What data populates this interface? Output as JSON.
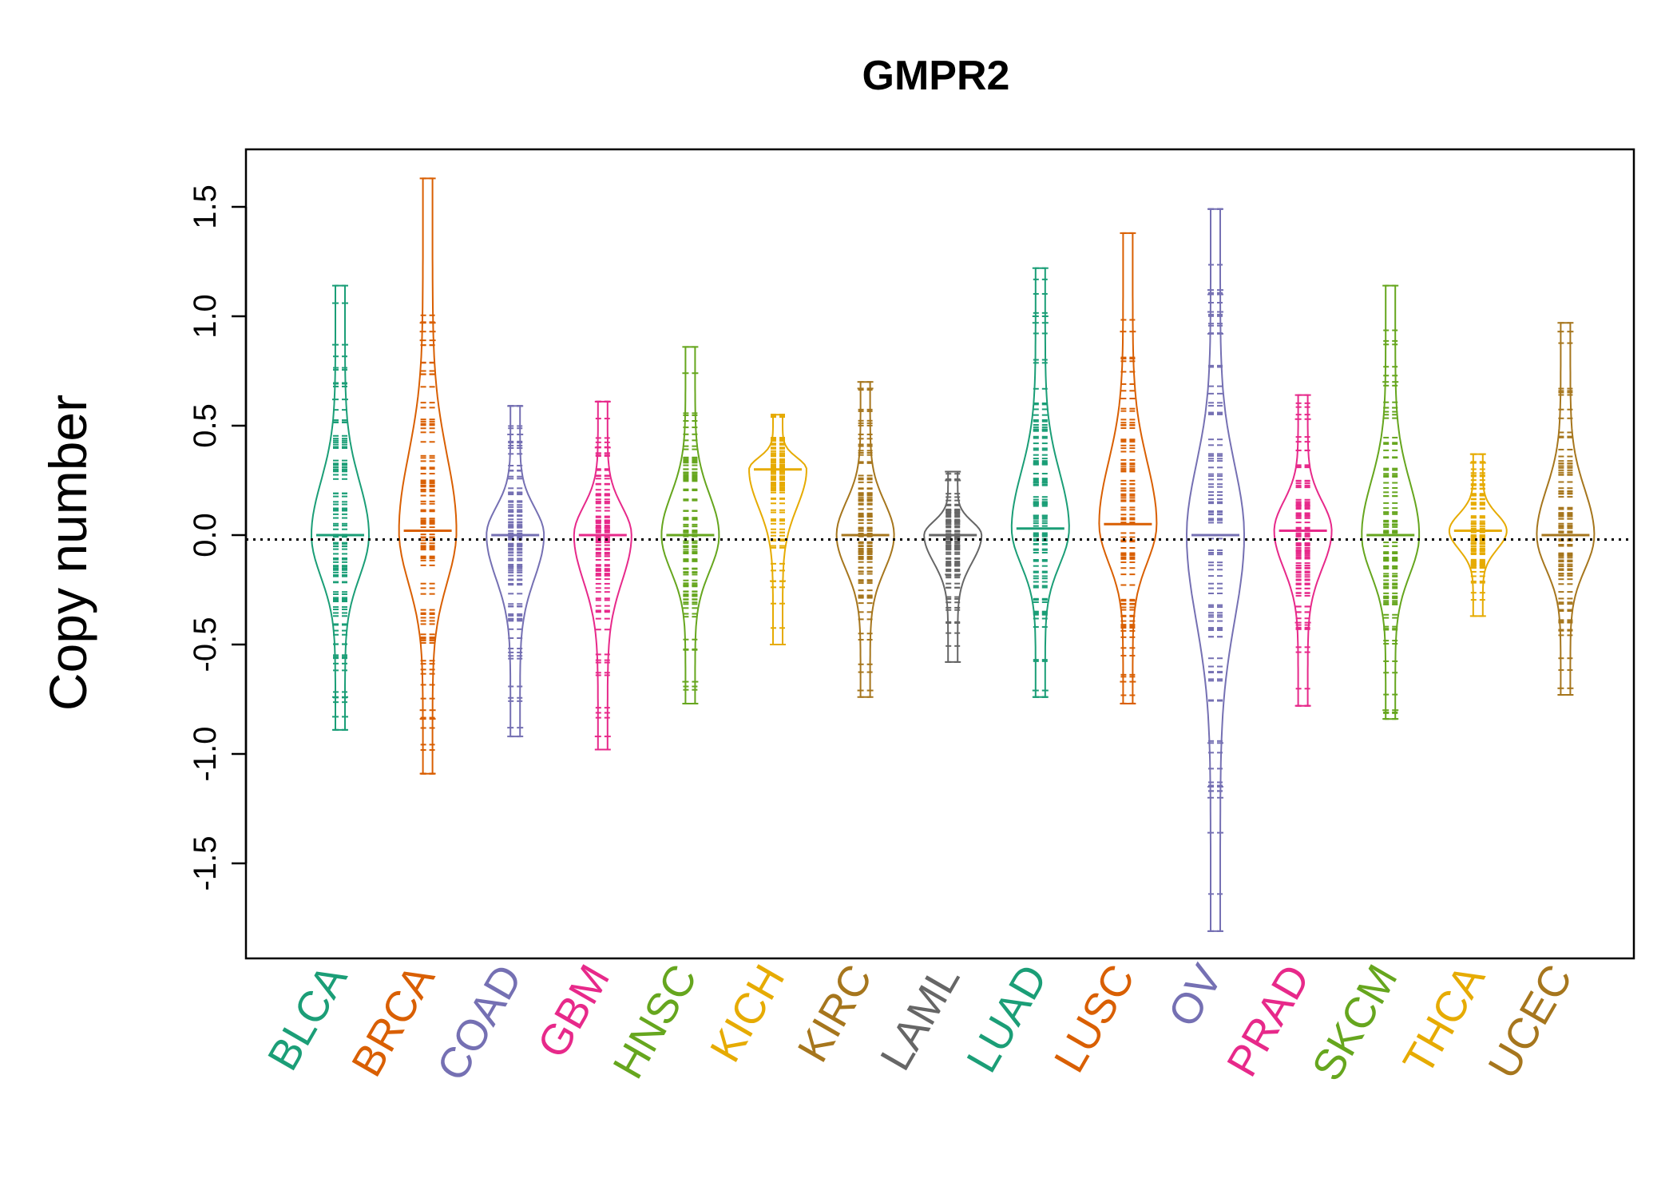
{
  "chart_data": {
    "type": "beanplot",
    "title": "GMPR2",
    "xlabel": "",
    "ylabel": "Copy number",
    "ylim": [
      -1.9,
      1.75
    ],
    "yticks": [
      -1.5,
      -1.0,
      -0.5,
      0.0,
      0.5,
      1.0,
      1.5
    ],
    "ytick_labels": [
      "-1.5",
      "-1.0",
      "-0.5",
      "0.0",
      "0.5",
      "1.0",
      "1.5"
    ],
    "reference_line": -0.02,
    "grid": false,
    "legend": "none",
    "categories": [
      "BLCA",
      "BRCA",
      "COAD",
      "GBM",
      "HNSC",
      "KICH",
      "KIRC",
      "LAML",
      "LUAD",
      "LUSC",
      "OV",
      "PRAD",
      "SKCM",
      "THCA",
      "UCEC"
    ],
    "colors": [
      "#1B9E77",
      "#D95F02",
      "#7570B3",
      "#E7298A",
      "#66A61E",
      "#E6AB02",
      "#A6761D",
      "#666666",
      "#1B9E77",
      "#D95F02",
      "#7570B3",
      "#E7298A",
      "#66A61E",
      "#E6AB02",
      "#A6761D"
    ],
    "series": [
      {
        "category": "BLCA",
        "median": 0.0,
        "min": -0.89,
        "max": 1.14,
        "outliers": [
          1.14,
          1.06,
          0.87,
          0.62,
          -0.74,
          -0.83,
          -0.89
        ]
      },
      {
        "category": "BRCA",
        "median": 0.02,
        "min": -1.09,
        "max": 1.63,
        "outliers": [
          1.63,
          0.97,
          0.93,
          0.89,
          -0.8,
          -0.84,
          -1.09
        ]
      },
      {
        "category": "COAD",
        "median": 0.0,
        "min": -0.92,
        "max": 0.59,
        "outliers": [
          0.59,
          0.46,
          -0.88,
          -0.92
        ]
      },
      {
        "category": "GBM",
        "median": 0.0,
        "min": -0.98,
        "max": 0.61,
        "outliers": [
          0.61,
          0.4,
          -0.92,
          -0.98
        ]
      },
      {
        "category": "HNSC",
        "median": 0.0,
        "min": -0.77,
        "max": 0.86,
        "outliers": [
          0.86,
          0.74,
          -0.67,
          -0.77
        ]
      },
      {
        "category": "KICH",
        "median": 0.3,
        "min": -0.5,
        "max": 0.55,
        "outliers": [
          -0.21,
          -0.5
        ]
      },
      {
        "category": "KIRC",
        "median": 0.0,
        "min": -0.74,
        "max": 0.7,
        "outliers": [
          0.7,
          0.67,
          -0.71,
          -0.74
        ]
      },
      {
        "category": "LAML",
        "median": 0.0,
        "min": -0.58,
        "max": 0.29,
        "outliers": [
          0.29,
          0.25,
          -0.18,
          -0.58
        ]
      },
      {
        "category": "LUAD",
        "median": 0.03,
        "min": -0.74,
        "max": 1.22,
        "outliers": [
          1.22,
          1.0,
          0.97,
          -0.71,
          -0.74
        ]
      },
      {
        "category": "LUSC",
        "median": 0.05,
        "min": -0.77,
        "max": 1.38,
        "outliers": [
          1.38,
          0.93,
          -0.67,
          -0.77
        ]
      },
      {
        "category": "OV",
        "median": 0.0,
        "min": -1.81,
        "max": 1.49,
        "outliers": [
          1.49,
          1.12,
          1.1,
          1.02,
          0.92,
          -0.95,
          -1.15,
          -1.2,
          -1.36,
          -1.81
        ]
      },
      {
        "category": "PRAD",
        "median": 0.02,
        "min": -0.78,
        "max": 0.64,
        "outliers": [
          0.64,
          0.53,
          -0.4,
          -0.78
        ]
      },
      {
        "category": "SKCM",
        "median": 0.0,
        "min": -0.84,
        "max": 1.14,
        "outliers": [
          1.14,
          0.7,
          -0.8,
          -0.84
        ]
      },
      {
        "category": "THCA",
        "median": 0.02,
        "min": -0.37,
        "max": 0.37,
        "outliers": [
          0.37,
          0.33,
          -0.15,
          -0.37
        ]
      },
      {
        "category": "UCEC",
        "median": 0.0,
        "min": -0.73,
        "max": 0.97,
        "outliers": [
          0.97,
          0.93,
          -0.7,
          -0.73
        ]
      }
    ]
  }
}
